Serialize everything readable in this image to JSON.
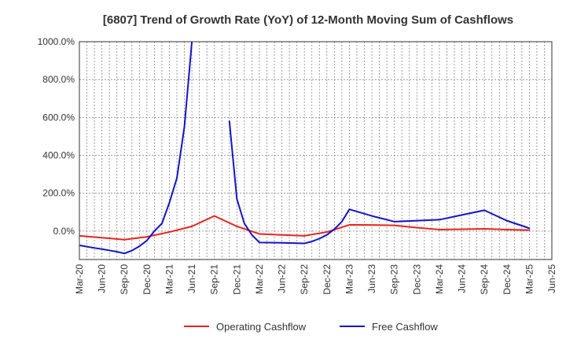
{
  "chart_data": {
    "type": "line",
    "title": "[6807]  Trend of Growth Rate (YoY) of 12-Month Moving Sum of Cashflows",
    "xlabel": "",
    "ylabel": "",
    "ylim": [
      -150,
      1000
    ],
    "y_ticks": [
      0,
      200,
      400,
      600,
      800,
      1000
    ],
    "y_tick_labels": [
      "0.0%",
      "200.0%",
      "400.0%",
      "600.0%",
      "800.0%",
      "1000.0%"
    ],
    "x_tick_labels": [
      "Mar-20",
      "Jun-20",
      "Sep-20",
      "Dec-20",
      "Mar-21",
      "Jun-21",
      "Sep-21",
      "Dec-21",
      "Mar-22",
      "Jun-22",
      "Sep-22",
      "Dec-22",
      "Mar-23",
      "Jun-23",
      "Sep-23",
      "Dec-23",
      "Mar-24",
      "Jun-24",
      "Sep-24",
      "Dec-24",
      "Mar-25",
      "Jun-25"
    ],
    "grid": true,
    "legend_position": "bottom",
    "series": [
      {
        "name": "Operating Cashflow",
        "color": "#e8231d",
        "points": [
          [
            "Mar-20",
            -25
          ],
          [
            "Jun-20",
            -35
          ],
          [
            "Sep-20",
            -45
          ],
          [
            "Dec-20",
            -30
          ],
          [
            "Mar-21",
            -5
          ],
          [
            "Jun-21",
            25
          ],
          [
            "Sep-21",
            80
          ],
          [
            "Dec-21",
            25
          ],
          [
            "Mar-22",
            -15
          ],
          [
            "Jun-22",
            -20
          ],
          [
            "Sep-22",
            -25
          ],
          [
            "Dec-22",
            -5
          ],
          [
            "Mar-23",
            33
          ],
          [
            "Jun-23",
            32
          ],
          [
            "Sep-23",
            30
          ],
          [
            "Dec-23",
            18
          ],
          [
            "Mar-24",
            8
          ],
          [
            "Jun-24",
            10
          ],
          [
            "Sep-24",
            12
          ],
          [
            "Dec-24",
            8
          ],
          [
            "Mar-25",
            5
          ]
        ]
      },
      {
        "name": "Free Cashflow",
        "color": "#1414c8",
        "segments": [
          [
            [
              "Mar-20",
              -75
            ],
            [
              "Apr-20",
              -82
            ],
            [
              "May-20",
              -89
            ],
            [
              "Jun-20",
              -95
            ],
            [
              "Jul-20",
              -102
            ],
            [
              "Aug-20",
              -109
            ],
            [
              "Sep-20",
              -118
            ],
            [
              "Oct-20",
              -103
            ],
            [
              "Nov-20",
              -80
            ],
            [
              "Dec-20",
              -50
            ],
            [
              "Jan-21",
              0
            ],
            [
              "Feb-21",
              40
            ],
            [
              "Mar-21",
              150
            ],
            [
              "Apr-21",
              280
            ],
            [
              "May-21",
              550
            ],
            [
              "Jun-21",
              1000
            ]
          ],
          [
            [
              "Nov-21",
              580
            ],
            [
              "Dec-21",
              170
            ],
            [
              "Jan-22",
              40
            ],
            [
              "Feb-22",
              -20
            ],
            [
              "Mar-22",
              -60
            ],
            [
              "Jun-22",
              -62
            ],
            [
              "Sep-22",
              -65
            ],
            [
              "Oct-22",
              -55
            ],
            [
              "Nov-22",
              -40
            ],
            [
              "Dec-22",
              -20
            ],
            [
              "Jan-23",
              10
            ],
            [
              "Feb-23",
              50
            ],
            [
              "Mar-23",
              115
            ],
            [
              "Jun-23",
              80
            ],
            [
              "Sep-23",
              50
            ],
            [
              "Dec-23",
              55
            ],
            [
              "Mar-24",
              60
            ],
            [
              "Jun-24",
              85
            ],
            [
              "Sep-24",
              110
            ],
            [
              "Dec-24",
              55
            ],
            [
              "Mar-25",
              15
            ]
          ]
        ]
      }
    ]
  }
}
